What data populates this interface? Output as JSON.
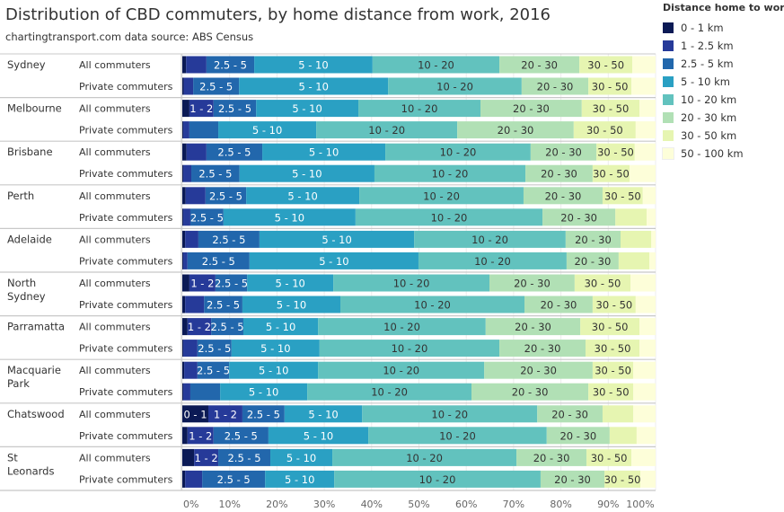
{
  "title": "Distribution of CBD commuters, by home distance from work, 2016",
  "subtitle": "chartingtransport.com  data source: ABS Census",
  "legend_title": "Distance home to work",
  "chart_data": {
    "type": "bar",
    "orientation": "horizontal-stacked-100",
    "title": "Distribution of CBD commuters, by home distance from work, 2016",
    "xlabel": "",
    "xlim": [
      0,
      100
    ],
    "x_ticks": [
      "0%",
      "10%",
      "20%",
      "30%",
      "40%",
      "50%",
      "60%",
      "70%",
      "80%",
      "90%",
      "100%"
    ],
    "legend_position": "right",
    "series": [
      {
        "name": "0 - 1 km",
        "label": "0 - 1",
        "color": "#0b1a55"
      },
      {
        "name": "1 - 2.5 km",
        "label": "1 - 2",
        "color": "#263a99"
      },
      {
        "name": "2.5 - 5 km",
        "label": "2.5 - 5",
        "color": "#2267ac"
      },
      {
        "name": "5 - 10 km",
        "label": "5 - 10",
        "color": "#2aa0c3"
      },
      {
        "name": "10 - 20 km",
        "label": "10 - 20",
        "color": "#62c2be"
      },
      {
        "name": "20 - 30 km",
        "label": "20 - 30",
        "color": "#b1e0b5"
      },
      {
        "name": "30 - 50 km",
        "label": "30 - 50",
        "color": "#e6f5b1"
      },
      {
        "name": "50 - 100 km",
        "label": "50 - 100",
        "color": "#fdfed9"
      }
    ],
    "groups": [
      {
        "name": "Sydney",
        "rows": [
          {
            "name": "All commuters",
            "values": [
              0.8,
              4.3,
              10.1,
              25.0,
              26.8,
              16.9,
              11.2,
              4.9
            ]
          },
          {
            "name": "Private commuters",
            "values": [
              0.3,
              2.0,
              9.7,
              31.5,
              28.2,
              14.1,
              9.1,
              5.1
            ]
          }
        ]
      },
      {
        "name": "Melbourne",
        "rows": [
          {
            "name": "All commuters",
            "values": [
              1.5,
              5.1,
              9.0,
              21.6,
              25.8,
              21.4,
              12.2,
              3.4
            ]
          },
          {
            "name": "Private commuters",
            "values": [
              0.2,
              1.3,
              6.1,
              20.7,
              29.8,
              24.6,
              13.1,
              4.2
            ]
          }
        ]
      },
      {
        "name": "Brisbane",
        "rows": [
          {
            "name": "All commuters",
            "values": [
              0.9,
              4.2,
              11.8,
              26.0,
              30.7,
              13.9,
              8.1,
              4.4
            ]
          },
          {
            "name": "Private commuters",
            "values": [
              0.2,
              1.7,
              10.2,
              28.5,
              31.9,
              14.2,
              7.8,
              5.5
            ]
          }
        ]
      },
      {
        "name": "Perth",
        "rows": [
          {
            "name": "All commuters",
            "values": [
              0.7,
              4.2,
              8.6,
              23.9,
              34.7,
              16.7,
              8.5,
              2.7
            ]
          },
          {
            "name": "Private commuters",
            "values": [
              0.2,
              1.5,
              7.0,
              27.9,
              39.5,
              15.4,
              6.6,
              1.9
            ]
          }
        ]
      },
      {
        "name": "Adelaide",
        "rows": [
          {
            "name": "All commuters",
            "values": [
              0.6,
              2.8,
              12.9,
              32.7,
              32.0,
              11.6,
              6.5,
              0.9
            ]
          },
          {
            "name": "Private commuters",
            "values": [
              0.2,
              0.9,
              13.1,
              35.7,
              31.3,
              11.0,
              6.5,
              1.3
            ]
          }
        ]
      },
      {
        "name": "North Sydney",
        "rows": [
          {
            "name": "All commuters",
            "values": [
              1.5,
              5.5,
              6.7,
              18.2,
              33.0,
              18.0,
              11.8,
              5.3
            ]
          },
          {
            "name": "Private commuters",
            "values": [
              0.6,
              4.0,
              8.1,
              20.7,
              38.9,
              14.4,
              9.1,
              4.2
            ]
          }
        ]
      },
      {
        "name": "Parramatta",
        "rows": [
          {
            "name": "All commuters",
            "values": [
              1.1,
              5.0,
              6.8,
              15.8,
              35.4,
              20.0,
              12.5,
              3.4
            ]
          },
          {
            "name": "Private commuters",
            "values": [
              0.2,
              3.0,
              7.2,
              18.6,
              38.0,
              18.2,
              11.4,
              3.4
            ]
          }
        ]
      },
      {
        "name": "Macquarie Park",
        "rows": [
          {
            "name": "All commuters",
            "values": [
              0.4,
              2.8,
              6.7,
              18.8,
              35.1,
              22.9,
              8.6,
              4.7
            ]
          },
          {
            "name": "Private commuters",
            "values": [
              0.2,
              1.5,
              6.3,
              18.4,
              34.7,
              24.7,
              9.5,
              4.7
            ]
          }
        ]
      },
      {
        "name": "Chatswood",
        "rows": [
          {
            "name": "All commuters",
            "values": [
              5.5,
              7.2,
              8.9,
              16.4,
              37.0,
              13.8,
              6.5,
              4.7
            ]
          },
          {
            "name": "Private commuters",
            "values": [
              1.1,
              5.5,
              11.6,
              21.1,
              37.7,
              13.3,
              5.7,
              4.0
            ]
          }
        ]
      },
      {
        "name": "St Leonards",
        "rows": [
          {
            "name": "All commuters",
            "values": [
              2.5,
              5.1,
              11.0,
              13.1,
              38.9,
              14.8,
              9.5,
              5.1
            ]
          },
          {
            "name": "Private commuters",
            "values": [
              0.6,
              3.6,
              13.3,
              14.6,
              43.6,
              13.5,
              7.6,
              3.2
            ]
          }
        ]
      }
    ]
  }
}
